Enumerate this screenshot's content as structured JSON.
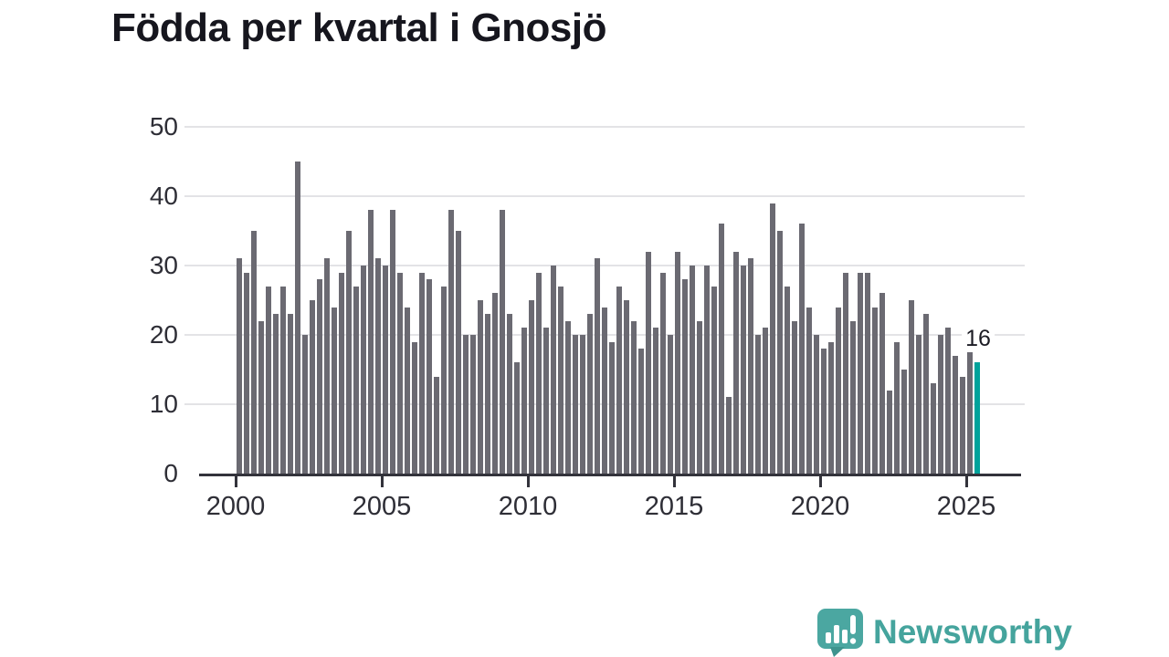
{
  "title": "Födda per kvartal i Gnosjö",
  "annotation": {
    "last_value_label": "16"
  },
  "footer": {
    "brand": "Newsworthy",
    "logo_icon": "speech-bubble-bar-chart"
  },
  "colors": {
    "bar": "#6b6a72",
    "highlight": "#00a29b",
    "grid": "#e3e3e6",
    "axis": "#33333b",
    "title_text": "#16161e",
    "logo_teal": "#45a49d"
  },
  "chart_data": {
    "type": "bar",
    "title": "Födda per kvartal i Gnosjö",
    "x_period": "quarterly",
    "x_start": "2000Q1",
    "x_end": "2025Q2",
    "values": [
      31,
      29,
      35,
      22,
      27,
      23,
      27,
      23,
      45,
      20,
      25,
      28,
      31,
      24,
      29,
      35,
      27,
      30,
      38,
      31,
      30,
      38,
      29,
      24,
      19,
      29,
      28,
      14,
      27,
      38,
      35,
      20,
      20,
      25,
      23,
      26,
      38,
      23,
      16,
      21,
      25,
      29,
      21,
      30,
      27,
      22,
      20,
      20,
      23,
      31,
      24,
      19,
      27,
      25,
      22,
      18,
      32,
      21,
      29,
      20,
      32,
      28,
      30,
      22,
      30,
      27,
      36,
      11,
      32,
      30,
      31,
      20,
      21,
      39,
      35,
      27,
      22,
      36,
      24,
      20,
      18,
      19,
      24,
      29,
      22,
      29,
      29,
      24,
      26,
      12,
      19,
      15,
      25,
      20,
      23,
      13,
      20,
      21,
      17,
      14,
      18,
      16
    ],
    "highlight_last_bar": true,
    "last_bar_label": "16",
    "yticks": [
      0,
      10,
      20,
      30,
      40,
      50
    ],
    "ylim": [
      0,
      50
    ],
    "xtick_labels": [
      "2000",
      "2005",
      "2010",
      "2015",
      "2020",
      "2025"
    ],
    "grid": true,
    "legend": "none"
  }
}
